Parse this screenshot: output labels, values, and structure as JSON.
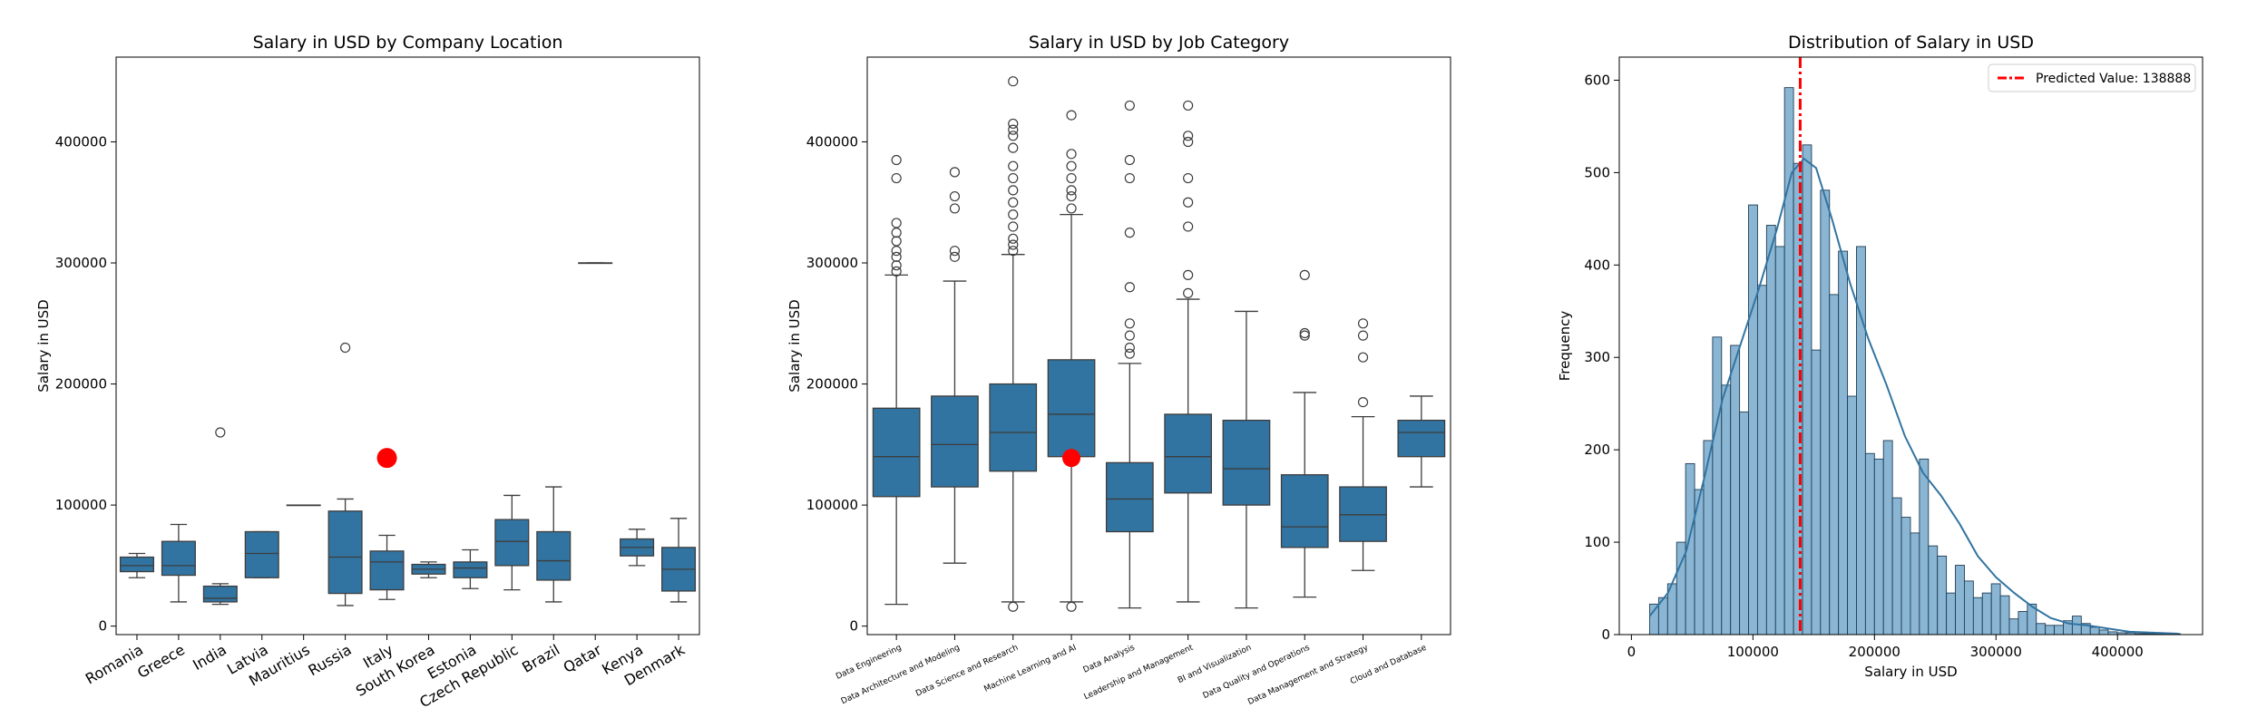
{
  "chart_data": [
    {
      "type": "box",
      "title": "Salary in USD by Company Location",
      "xlabel": "",
      "ylabel": "Salary in USD",
      "ylim": [
        -7000,
        470000
      ],
      "yticks": [
        0,
        100000,
        200000,
        300000,
        400000
      ],
      "ytick_labels": [
        "0",
        "100000",
        "200000",
        "300000",
        "400000"
      ],
      "grid": false,
      "categories": [
        "Romania",
        "Greece",
        "India",
        "Latvia",
        "Mauritius",
        "Russia",
        "Italy",
        "South Korea",
        "Estonia",
        "Czech Republic",
        "Brazil",
        "Qatar",
        "Kenya",
        "Denmark"
      ],
      "boxes": [
        {
          "whislo": 40000,
          "q1": 45000,
          "med": 50000,
          "q3": 57000,
          "whishi": 60000,
          "fliers": []
        },
        {
          "whislo": 20000,
          "q1": 42000,
          "med": 50000,
          "q3": 70000,
          "whishi": 84000,
          "fliers": []
        },
        {
          "whislo": 18000,
          "q1": 20000,
          "med": 23000,
          "q3": 33000,
          "whishi": 35000,
          "fliers": [
            160000
          ]
        },
        {
          "whislo": 40000,
          "q1": 40000,
          "med": 60000,
          "q3": 78000,
          "whishi": 78000,
          "fliers": []
        },
        {
          "whislo": 100000,
          "q1": 100000,
          "med": 100000,
          "q3": 100000,
          "whishi": 100000,
          "fliers": []
        },
        {
          "whislo": 17000,
          "q1": 27000,
          "med": 57000,
          "q3": 95000,
          "whishi": 105000,
          "fliers": [
            230000
          ]
        },
        {
          "whislo": 22000,
          "q1": 30000,
          "med": 53000,
          "q3": 62000,
          "whishi": 75000,
          "fliers": []
        },
        {
          "whislo": 40000,
          "q1": 43000,
          "med": 47000,
          "q3": 51000,
          "whishi": 53000,
          "fliers": []
        },
        {
          "whislo": 31000,
          "q1": 40000,
          "med": 48000,
          "q3": 53000,
          "whishi": 63000,
          "fliers": []
        },
        {
          "whislo": 30000,
          "q1": 50000,
          "med": 70000,
          "q3": 88000,
          "whishi": 108000,
          "fliers": []
        },
        {
          "whislo": 20000,
          "q1": 38000,
          "med": 54000,
          "q3": 78000,
          "whishi": 115000,
          "fliers": []
        },
        {
          "whislo": 300000,
          "q1": 300000,
          "med": 300000,
          "q3": 300000,
          "whishi": 300000,
          "fliers": []
        },
        {
          "whislo": 50000,
          "q1": 58000,
          "med": 65000,
          "q3": 72000,
          "whishi": 80000,
          "fliers": []
        },
        {
          "whislo": 20000,
          "q1": 29000,
          "med": 47000,
          "q3": 65000,
          "whishi": 89000,
          "fliers": []
        }
      ],
      "marker": {
        "category_index": 6,
        "value": 138888,
        "color": "#ff0000"
      }
    },
    {
      "type": "box",
      "title": "Salary in USD by Job Category",
      "xlabel": "",
      "ylabel": "Salary in USD",
      "ylim": [
        -7000,
        470000
      ],
      "yticks": [
        0,
        100000,
        200000,
        300000,
        400000
      ],
      "ytick_labels": [
        "0",
        "100000",
        "200000",
        "300000",
        "400000"
      ],
      "grid": false,
      "categories": [
        "Data Engineering",
        "Data Architecture and Modeling",
        "Data Science and Research",
        "Machine Learning and AI",
        "Data Analysis",
        "Leadership and Management",
        "BI and Visualization",
        "Data Quality and Operations",
        "Data Management and Strategy",
        "Cloud and Database"
      ],
      "boxes": [
        {
          "whislo": 18000,
          "q1": 107000,
          "med": 140000,
          "q3": 180000,
          "whishi": 290000,
          "fliers": [
            293000,
            298000,
            305000,
            310000,
            318000,
            325000,
            333000,
            370000,
            385000
          ]
        },
        {
          "whislo": 52000,
          "q1": 115000,
          "med": 150000,
          "q3": 190000,
          "whishi": 285000,
          "fliers": [
            305000,
            310000,
            345000,
            355000,
            375000
          ]
        },
        {
          "whislo": 20000,
          "q1": 128000,
          "med": 160000,
          "q3": 200000,
          "whishi": 307000,
          "fliers": [
            16000,
            310000,
            315000,
            320000,
            330000,
            340000,
            350000,
            360000,
            370000,
            380000,
            395000,
            405000,
            410000,
            415000,
            450000
          ]
        },
        {
          "whislo": 20000,
          "q1": 140000,
          "med": 175000,
          "q3": 220000,
          "whishi": 340000,
          "fliers": [
            16000,
            345000,
            355000,
            360000,
            370000,
            380000,
            390000,
            422000
          ]
        },
        {
          "whislo": 15000,
          "q1": 78000,
          "med": 105000,
          "q3": 135000,
          "whishi": 217000,
          "fliers": [
            225000,
            230000,
            240000,
            250000,
            280000,
            325000,
            370000,
            385000,
            430000
          ]
        },
        {
          "whislo": 20000,
          "q1": 110000,
          "med": 140000,
          "q3": 175000,
          "whishi": 270000,
          "fliers": [
            275000,
            290000,
            330000,
            350000,
            370000,
            400000,
            405000,
            430000
          ]
        },
        {
          "whislo": 15000,
          "q1": 100000,
          "med": 130000,
          "q3": 170000,
          "whishi": 260000,
          "fliers": []
        },
        {
          "whislo": 24000,
          "q1": 65000,
          "med": 82000,
          "q3": 125000,
          "whishi": 193000,
          "fliers": [
            240000,
            242000,
            290000
          ]
        },
        {
          "whislo": 46000,
          "q1": 70000,
          "med": 92000,
          "q3": 115000,
          "whishi": 173000,
          "fliers": [
            185000,
            222000,
            240000,
            250000
          ]
        },
        {
          "whislo": 115000,
          "q1": 140000,
          "med": 160000,
          "q3": 170000,
          "whishi": 190000,
          "fliers": []
        }
      ],
      "marker": {
        "category_index": 3,
        "value": 138888,
        "color": "#ff0000"
      }
    },
    {
      "type": "histogram",
      "title": "Distribution of Salary in USD",
      "xlabel": "Salary in USD",
      "ylabel": "Frequency",
      "xlim": [
        -10000,
        470000
      ],
      "ylim": [
        0,
        625
      ],
      "xticks": [
        0,
        100000,
        200000,
        300000,
        400000
      ],
      "xtick_labels": [
        "0",
        "100000",
        "200000",
        "300000",
        "400000"
      ],
      "yticks": [
        0,
        100,
        200,
        300,
        400,
        500,
        600
      ],
      "ytick_labels": [
        "0",
        "100",
        "200",
        "300",
        "400",
        "500",
        "600"
      ],
      "grid": false,
      "bin_start": 15000,
      "bin_width": 7400,
      "counts": [
        33,
        40,
        55,
        100,
        185,
        157,
        210,
        322,
        270,
        313,
        241,
        465,
        378,
        443,
        420,
        592,
        510,
        530,
        308,
        481,
        368,
        415,
        258,
        420,
        196,
        190,
        210,
        148,
        127,
        110,
        190,
        96,
        85,
        45,
        75,
        58,
        40,
        45,
        55,
        42,
        17,
        25,
        33,
        12,
        10,
        10,
        15,
        20,
        12,
        8,
        5,
        3,
        2,
        2,
        1,
        1,
        1,
        1,
        1
      ],
      "kde": [
        [
          15000,
          20
        ],
        [
          30000,
          45
        ],
        [
          45000,
          90
        ],
        [
          60000,
          170
        ],
        [
          75000,
          255
        ],
        [
          90000,
          315
        ],
        [
          105000,
          375
        ],
        [
          120000,
          440
        ],
        [
          132000,
          500
        ],
        [
          142000,
          515
        ],
        [
          152000,
          505
        ],
        [
          165000,
          450
        ],
        [
          180000,
          380
        ],
        [
          195000,
          320
        ],
        [
          210000,
          270
        ],
        [
          225000,
          215
        ],
        [
          240000,
          175
        ],
        [
          255000,
          150
        ],
        [
          270000,
          120
        ],
        [
          285000,
          85
        ],
        [
          300000,
          62
        ],
        [
          315000,
          45
        ],
        [
          330000,
          30
        ],
        [
          345000,
          18
        ],
        [
          360000,
          12
        ],
        [
          375000,
          10
        ],
        [
          390000,
          7
        ],
        [
          410000,
          3
        ],
        [
          450000,
          1
        ]
      ],
      "kde_color": "#3274a1",
      "bar_color": "#8ab6d4",
      "series": [
        {
          "name": "Predicted Value: 138888",
          "value": 138888,
          "color": "#ff0000",
          "style": "dashdot"
        }
      ],
      "legend": "top-right"
    }
  ]
}
